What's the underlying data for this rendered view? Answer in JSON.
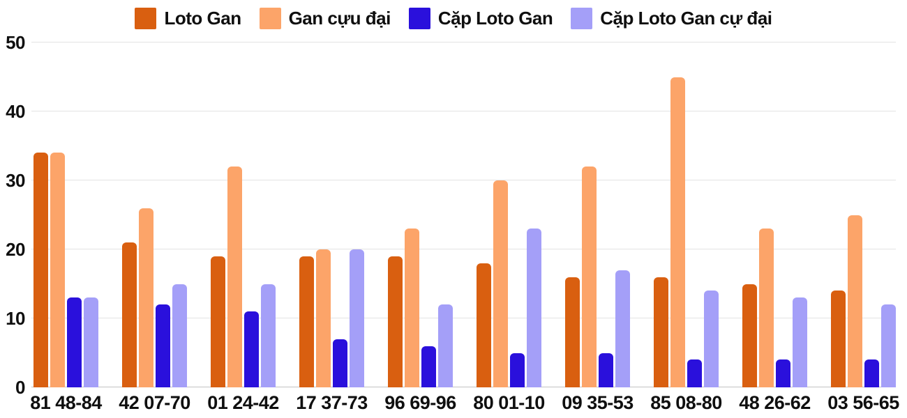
{
  "chart_data": {
    "type": "bar",
    "categories": [
      "81 48-84",
      "42 07-70",
      "01 24-42",
      "17 37-73",
      "96 69-96",
      "80 01-10",
      "09 35-53",
      "85 08-80",
      "48 26-62",
      "03 56-65"
    ],
    "series": [
      {
        "name": "Loto Gan",
        "color": "#d95f10",
        "values": [
          34,
          21,
          19,
          19,
          19,
          18,
          16,
          16,
          15,
          14
        ]
      },
      {
        "name": "Gan cựu đại",
        "color": "#fca469",
        "values": [
          34,
          26,
          32,
          20,
          23,
          30,
          32,
          45,
          23,
          25
        ]
      },
      {
        "name": "Cặp Loto Gan",
        "color": "#2a10dc",
        "values": [
          13,
          12,
          11,
          7,
          6,
          5,
          5,
          4,
          4,
          4
        ]
      },
      {
        "name": "Cặp Loto Gan cự đại",
        "color": "#a49ff8",
        "values": [
          13,
          15,
          15,
          20,
          12,
          23,
          17,
          14,
          13,
          12
        ]
      }
    ],
    "ylim": [
      0,
      50
    ],
    "yticks": [
      0,
      10,
      20,
      30,
      40,
      50
    ],
    "grid": true,
    "legend_position": "top",
    "background": "#ffffff",
    "axis_text_color": "#0f0f0f",
    "gridline_color": "#e3e3e3",
    "baseline_color": "#c2c2c2"
  }
}
